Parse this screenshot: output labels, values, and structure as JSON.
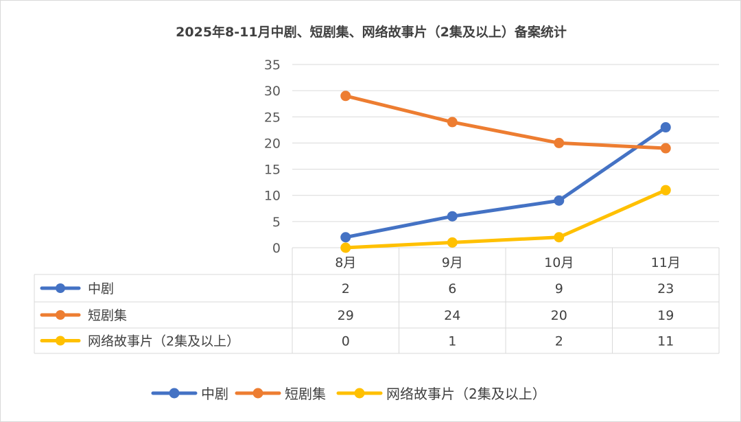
{
  "chart_data": {
    "type": "line",
    "title": "2025年8-11月中剧、短剧集、网络故事片（2集及以上）备案统计",
    "categories": [
      "8月",
      "9月",
      "10月",
      "11月"
    ],
    "ylim": [
      0,
      35
    ],
    "yticks": [
      0,
      5,
      10,
      15,
      20,
      25,
      30,
      35
    ],
    "grid": true,
    "legend_position": "bottom",
    "series": [
      {
        "name": "中剧",
        "values": [
          2,
          6,
          9,
          23
        ],
        "color": "#4472c4"
      },
      {
        "name": "短剧集",
        "values": [
          29,
          24,
          20,
          19
        ],
        "color": "#ed7d31"
      },
      {
        "name": "网络故事片（2集及以上）",
        "values": [
          0,
          1,
          2,
          11
        ],
        "color": "#ffc000"
      }
    ]
  }
}
